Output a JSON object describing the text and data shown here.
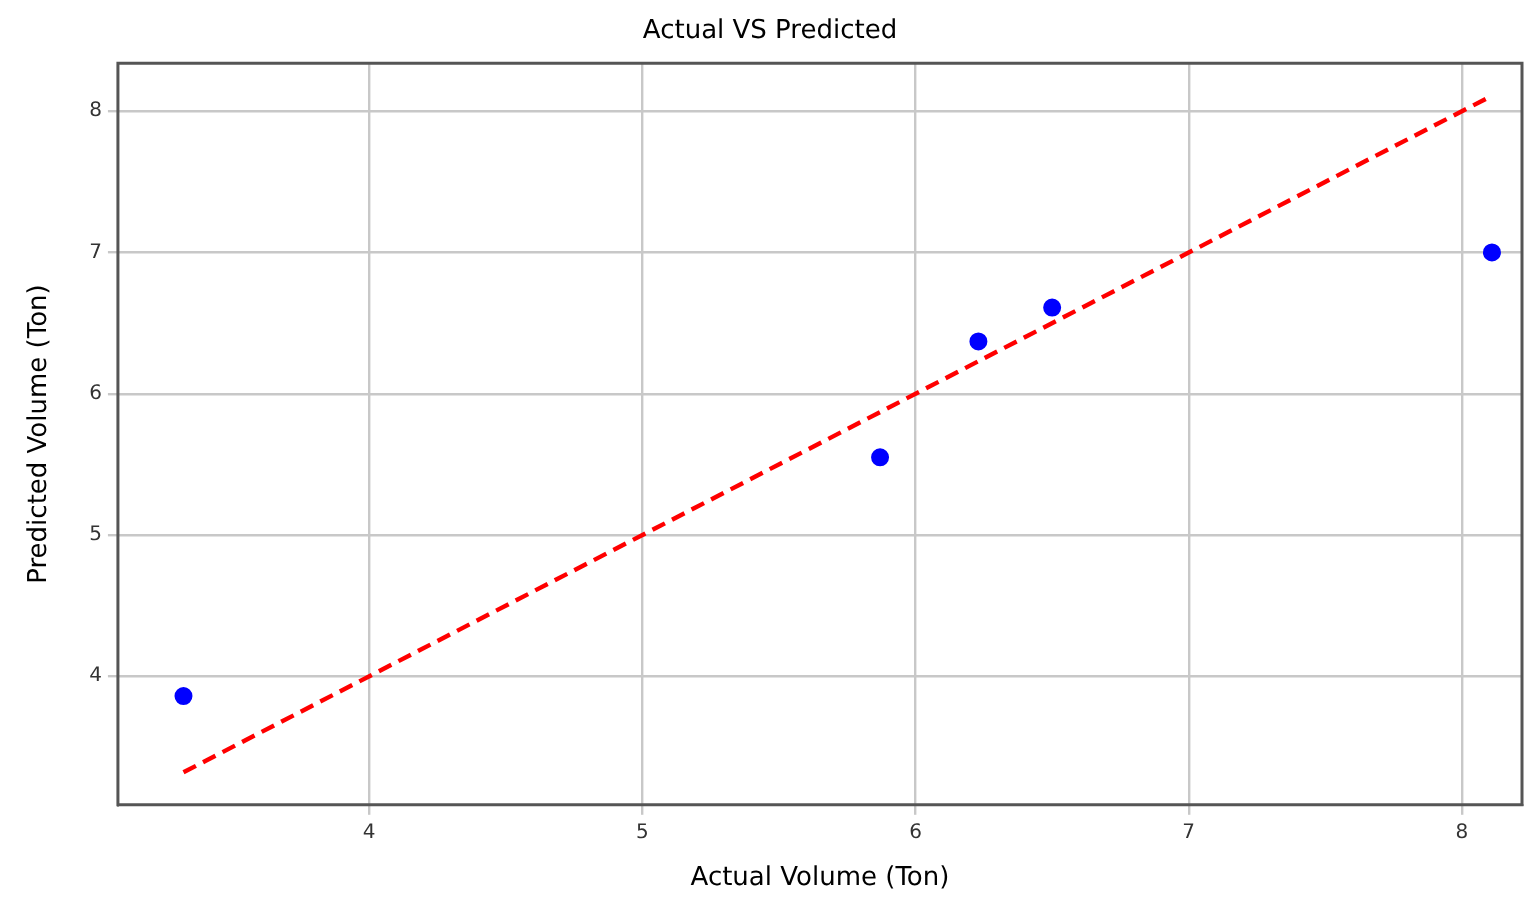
{
  "chart_data": {
    "type": "scatter",
    "title": "Actual VS Predicted",
    "xlabel": "Actual Volume (Ton)",
    "ylabel": "Predicted Volume (Ton)",
    "series": [
      {
        "type": "scatter",
        "color": "#0000ff",
        "marker": "circle",
        "x": [
          3.32,
          5.87,
          6.23,
          6.5,
          8.11
        ],
        "values": [
          3.86,
          5.55,
          6.37,
          6.61,
          7.0
        ]
      },
      {
        "type": "line",
        "color": "#ff0000",
        "marker": "none",
        "line_style": "dashed",
        "x": [
          3.32,
          8.1
        ],
        "values": [
          3.32,
          8.1
        ]
      }
    ],
    "xlim": [
      3.08,
      8.22
    ],
    "xticks": [
      4,
      5,
      6,
      7,
      8
    ],
    "ylim": [
      3.09,
      8.34
    ],
    "yticks": [
      4,
      5,
      6,
      7,
      8
    ],
    "grid": true,
    "legend": false
  }
}
